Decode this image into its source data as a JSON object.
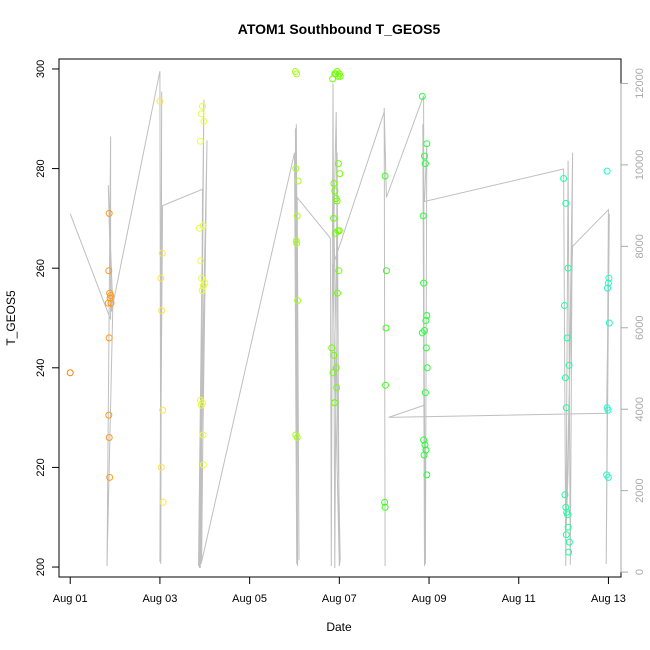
{
  "chart_data": {
    "type": "scatter",
    "title": "ATOM1 Southbound T_GEOS5",
    "xlabel": "Date",
    "ylabel": "T_GEOS5",
    "x_ticks": [
      "Aug 01",
      "Aug 03",
      "Aug 05",
      "Aug 07",
      "Aug 09",
      "Aug 11",
      "Aug 13"
    ],
    "x_tick_days": [
      1,
      3,
      5,
      7,
      9,
      11,
      13
    ],
    "xlim": [
      0.75,
      13.28
    ],
    "y_ticks": [
      200,
      220,
      240,
      260,
      280,
      300
    ],
    "ylim": [
      198,
      302
    ],
    "y2_ticks": [
      0,
      2000,
      4000,
      6000,
      8000,
      10000,
      12000
    ],
    "y2lim": [
      -120,
      12600
    ],
    "grid": false,
    "colors": {
      "Aug 01": "#FF7F00",
      "Aug 02": "#FF9A1A",
      "Aug 03": "#FFE347",
      "Aug 04": "#E8FF3A",
      "Aug 06": "#A8FF1A",
      "Aug 07": "#6EFF00",
      "Aug 08": "#3CFF1A",
      "Aug 09": "#28FF3C",
      "Aug 12": "#1AFFA0",
      "Aug 13": "#1AFFC8",
      "altitude_line": "#BFBFBF"
    },
    "series": [
      {
        "color_key": "Aug 01",
        "x": [
          1.0
        ],
        "y": [
          239
        ]
      },
      {
        "color_key": "Aug 02",
        "x": [
          1.87,
          1.86,
          1.88,
          1.9,
          1.85,
          1.91,
          1.87,
          1.86,
          1.87,
          1.88,
          1.89
        ],
        "y": [
          271,
          259.5,
          255,
          254.5,
          253,
          253,
          246,
          230.5,
          226,
          218,
          254
        ]
      },
      {
        "color_key": "Aug 03",
        "x": [
          3.0,
          3.05,
          3.02,
          3.04,
          3.06,
          3.03,
          3.07
        ],
        "y": [
          293.5,
          263,
          258,
          251.5,
          231.5,
          220,
          213
        ]
      },
      {
        "color_key": "Aug 04",
        "x": [
          3.95,
          3.92,
          3.98,
          3.9,
          3.88,
          3.96,
          3.91,
          3.93,
          4.0,
          3.97,
          3.94,
          3.9,
          3.92,
          3.95,
          3.96,
          3.97
        ],
        "y": [
          292.5,
          291,
          289.5,
          285.5,
          268,
          268.5,
          261.5,
          258,
          257,
          256.5,
          255.5,
          233.5,
          232.5,
          233,
          226.5,
          220.5
        ]
      },
      {
        "color_key": "Aug 06",
        "x": [
          6.02,
          6.05,
          6.03,
          6.08,
          6.06,
          6.04,
          6.05,
          6.07,
          6.03,
          6.06
        ],
        "y": [
          299.5,
          299,
          280,
          277.5,
          270.5,
          265.5,
          265,
          253.5,
          226.5,
          226
        ]
      },
      {
        "color_key": "Aug 07",
        "x": [
          6.85,
          6.9,
          6.95,
          7.0,
          6.92,
          6.97,
          7.02,
          6.98,
          7.01,
          6.88,
          6.9,
          6.93,
          6.95,
          6.87,
          6.92,
          6.97,
          7.0,
          6.99,
          6.96,
          6.83,
          6.88,
          6.93,
          6.86,
          6.89,
          6.9,
          6.94
        ],
        "y": [
          298,
          299,
          299.5,
          299,
          299,
          298.5,
          298.5,
          281,
          279,
          277,
          275.5,
          274,
          273.5,
          270,
          267,
          267.5,
          267.5,
          259.5,
          255,
          244,
          242.5,
          240,
          239,
          233,
          233,
          236
        ]
      },
      {
        "color_key": "Aug 08",
        "x": [
          8.02,
          8.05,
          8.04,
          8.03,
          8.01,
          8.02
        ],
        "y": [
          278.5,
          259.5,
          248,
          236.5,
          213,
          212
        ]
      },
      {
        "color_key": "Aug 09",
        "x": [
          8.85,
          8.95,
          8.9,
          8.92,
          8.87,
          8.88,
          8.95,
          8.93,
          8.9,
          8.85,
          8.94,
          8.96,
          8.92,
          8.88,
          8.91,
          8.93,
          8.89,
          8.95
        ],
        "y": [
          294.5,
          285,
          282.5,
          281,
          270.5,
          257,
          250.5,
          249.5,
          247.5,
          247,
          244,
          240,
          235,
          225.5,
          224.5,
          223.5,
          222.5,
          218.5
        ]
      },
      {
        "color_key": "Aug 12",
        "x": [
          12.0,
          12.05,
          12.1,
          12.02,
          12.08,
          12.12,
          12.04,
          12.06,
          12.03,
          12.05,
          12.07,
          12.09,
          12.1,
          12.06,
          12.11,
          12.13
        ],
        "y": [
          278,
          273,
          260,
          252.5,
          246,
          240.5,
          238,
          232,
          214.5,
          212,
          211,
          210.5,
          208,
          206.5,
          203,
          205
        ]
      },
      {
        "color_key": "Aug 13",
        "x": [
          12.97,
          13.0,
          12.98,
          13.02,
          12.99,
          12.96,
          13.0,
          12.97,
          13.01
        ],
        "y": [
          279.5,
          257,
          256,
          249,
          231.5,
          218.5,
          218,
          232,
          258
        ]
      }
    ],
    "altitude_series": {
      "axis": "right",
      "color_key": "altitude_line",
      "x": [
        1.0,
        1.9,
        1.9,
        1.82,
        1.95,
        1.85,
        1.92,
        3.0,
        3.02,
        3.04,
        3.0,
        3.06,
        3.95,
        3.9,
        3.98,
        3.86,
        4.05,
        3.92,
        3.95,
        3.88,
        4.0,
        3.93,
        6.0,
        6.05,
        6.02,
        6.07,
        6.04,
        6.1,
        6.06,
        6.8,
        6.82,
        6.86,
        6.9,
        6.95,
        7.0,
        7.02,
        6.88,
        6.93,
        7.0,
        6.85,
        8.0,
        8.02,
        8.0,
        8.05,
        8.88,
        8.9,
        8.86,
        8.92,
        8.95,
        8.9,
        12.0,
        12.05,
        12.1,
        12.15,
        12.2,
        12.1,
        12.05,
        12.2,
        13.0,
        12.95,
        13.02,
        12.96,
        8.1,
        8.9
      ],
      "y": [
        8800,
        6200,
        10700,
        150,
        6500,
        9500,
        6400,
        12300,
        200,
        11800,
        250,
        9000,
        9400,
        100,
        11600,
        150,
        10600,
        200,
        8900,
        100,
        7800,
        250,
        10300,
        200,
        10900,
        150,
        11000,
        300,
        9200,
        8200,
        150,
        12000,
        100,
        10300,
        150,
        300,
        8600,
        11300,
        200,
        7500,
        11300,
        150,
        11400,
        9200,
        11700,
        150,
        11000,
        200,
        10500,
        9100,
        9900,
        150,
        10100,
        180,
        10300,
        2500,
        800,
        8000,
        8900,
        200,
        8800,
        3900,
        3800,
        4100
      ]
    }
  }
}
